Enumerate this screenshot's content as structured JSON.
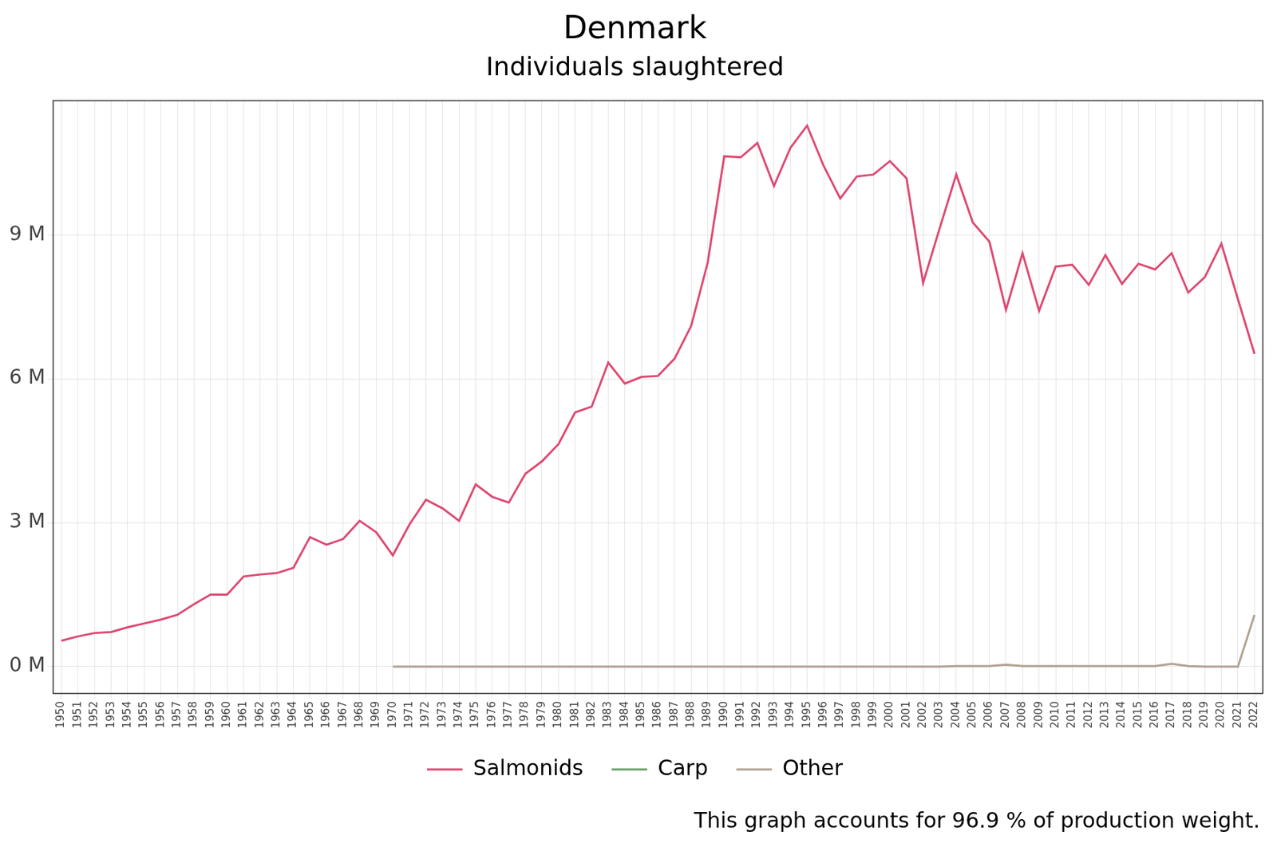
{
  "chart_data": {
    "type": "line",
    "title": "Denmark",
    "subtitle": "Individuals slaughtered",
    "caption": "This graph accounts for 96.9 % of production weight.",
    "categories": [
      "1950",
      "1951",
      "1952",
      "1953",
      "1954",
      "1955",
      "1956",
      "1957",
      "1958",
      "1959",
      "1960",
      "1961",
      "1962",
      "1963",
      "1964",
      "1965",
      "1966",
      "1967",
      "1968",
      "1969",
      "1970",
      "1971",
      "1972",
      "1973",
      "1974",
      "1975",
      "1976",
      "1977",
      "1978",
      "1979",
      "1980",
      "1981",
      "1982",
      "1983",
      "1984",
      "1985",
      "1986",
      "1987",
      "1988",
      "1989",
      "1990",
      "1991",
      "1992",
      "1993",
      "1994",
      "1995",
      "1996",
      "1997",
      "1998",
      "1999",
      "2000",
      "2001",
      "2002",
      "2003",
      "2004",
      "2005",
      "2006",
      "2007",
      "2008",
      "2009",
      "2010",
      "2011",
      "2012",
      "2013",
      "2014",
      "2015",
      "2016",
      "2017",
      "2018",
      "2019",
      "2020",
      "2021",
      "2022"
    ],
    "series": [
      {
        "name": "Salmonids",
        "color": "#dd4a72",
        "values": [
          0.54,
          0.63,
          0.7,
          0.72,
          0.82,
          0.9,
          0.98,
          1.08,
          1.3,
          1.5,
          1.5,
          1.88,
          1.92,
          1.95,
          2.06,
          2.7,
          2.54,
          2.66,
          3.04,
          2.8,
          2.32,
          2.96,
          3.48,
          3.3,
          3.04,
          3.8,
          3.54,
          3.42,
          4.02,
          4.28,
          4.64,
          5.3,
          5.42,
          6.34,
          5.9,
          6.04,
          6.06,
          6.42,
          7.1,
          8.42,
          10.64,
          10.62,
          10.92,
          10.02,
          10.82,
          11.28,
          10.44,
          9.76,
          10.22,
          10.26,
          10.54,
          10.18,
          8.0,
          9.14,
          10.26,
          9.26,
          8.86,
          7.44,
          8.62,
          7.42,
          8.34,
          8.38,
          7.96,
          8.58,
          7.98,
          8.4,
          8.28,
          8.62,
          7.8,
          8.12,
          8.82,
          7.66,
          6.52
        ]
      },
      {
        "name": "Carp",
        "color": "#6a9f6a",
        "values": [
          null,
          null,
          null,
          null,
          null,
          null,
          null,
          null,
          null,
          null,
          null,
          null,
          null,
          null,
          null,
          null,
          null,
          null,
          null,
          null,
          null,
          null,
          null,
          null,
          null,
          null,
          null,
          null,
          null,
          null,
          null,
          null,
          null,
          null,
          null,
          null,
          null,
          null,
          null,
          null,
          null,
          null,
          null,
          null,
          null,
          null,
          null,
          null,
          null,
          null,
          null,
          null,
          null,
          null,
          null,
          null,
          null,
          null,
          null,
          null,
          null,
          null,
          null,
          null,
          null,
          null,
          null,
          null,
          null,
          null,
          null,
          null,
          null
        ]
      },
      {
        "name": "Other",
        "color": "#b2a293",
        "values": [
          null,
          null,
          null,
          null,
          null,
          null,
          null,
          null,
          null,
          null,
          null,
          null,
          null,
          null,
          null,
          null,
          null,
          null,
          null,
          null,
          0,
          0,
          0,
          0,
          0,
          0,
          0,
          0,
          0,
          0,
          0,
          0,
          0,
          0,
          0,
          0,
          0,
          0,
          0,
          0,
          0,
          0,
          0,
          0,
          0,
          0,
          0,
          0,
          0,
          0,
          0,
          0,
          0,
          0,
          0.01,
          0.01,
          0.01,
          0.04,
          0.01,
          0.01,
          0.01,
          0.01,
          0.01,
          0.01,
          0.01,
          0.01,
          0.01,
          0.06,
          0.01,
          0,
          0,
          0,
          1.08
        ]
      }
    ],
    "ylim": [
      -0.56,
      11.8
    ],
    "yticks": [
      {
        "value": 0,
        "label": "0 M"
      },
      {
        "value": 3,
        "label": "3 M"
      },
      {
        "value": 6,
        "label": "6 M"
      },
      {
        "value": 9,
        "label": "9 M"
      }
    ],
    "grid": true,
    "legend": "bottom",
    "marker": "none",
    "line_style": "solid"
  }
}
